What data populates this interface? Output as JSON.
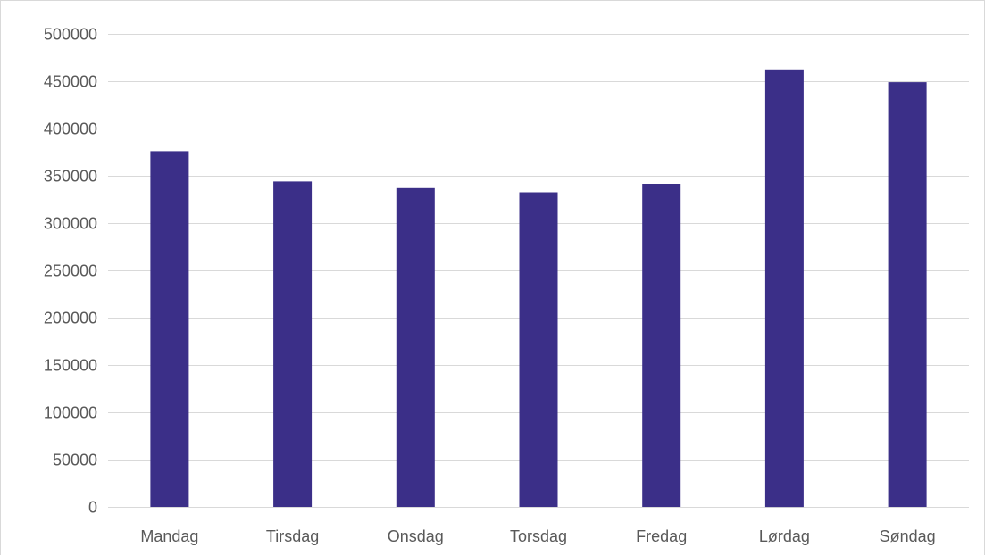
{
  "chart_data": {
    "type": "bar",
    "title": "",
    "xlabel": "",
    "ylabel": "",
    "categories": [
      "Mandag",
      "Tirsdag",
      "Onsdag",
      "Torsdag",
      "Fredag",
      "Lørdag",
      "Søndag"
    ],
    "series": [
      {
        "values": [
          376000,
          344000,
          337000,
          332500,
          341500,
          462500,
          449000
        ],
        "color": "#3b2f88"
      }
    ],
    "ylim": [
      0,
      500000
    ],
    "yticks": [
      0,
      50000,
      100000,
      150000,
      200000,
      250000,
      300000,
      350000,
      400000,
      450000,
      500000
    ],
    "ytick_labels": [
      "0",
      "50000",
      "100000",
      "150000",
      "200000",
      "250000",
      "300000",
      "350000",
      "400000",
      "450000",
      "500000"
    ],
    "grid": true,
    "legend": false
  }
}
